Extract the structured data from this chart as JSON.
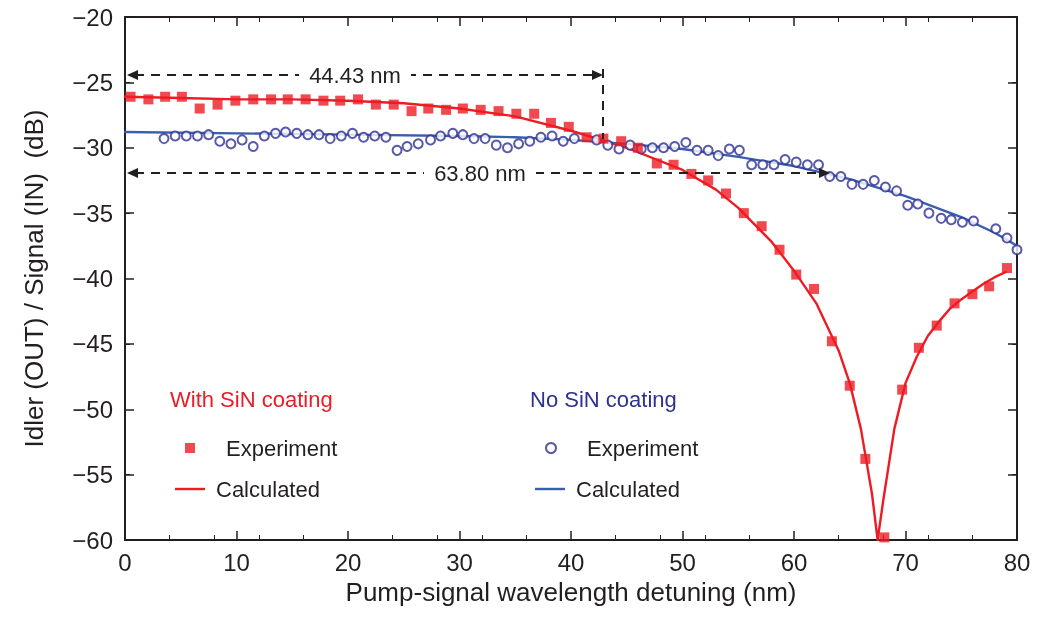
{
  "chart_data": {
    "type": "scatter",
    "xlabel": "Pump-signal wavelength detuning (nm)",
    "ylabel": "Idler (OUT) / Signal (IN)  (dB)",
    "xlim": [
      0,
      80
    ],
    "xticks": [
      0,
      10,
      20,
      30,
      40,
      50,
      60,
      70,
      80
    ],
    "ylim": [
      -60,
      -20
    ],
    "yticks": [
      -60,
      -55,
      -50,
      -45,
      -40,
      -35,
      -30,
      -25,
      -20
    ],
    "grid": false,
    "legend": "bottom left",
    "annotations": [
      "44.43 nm",
      "63.80 nm",
      "With SiN coating",
      "No SiN coating"
    ],
    "series": [
      {
        "name": "Experiment",
        "marker": "square",
        "color": "#ed1c24",
        "x": [
          0.5,
          2.1,
          3.6,
          5.1,
          6.7,
          8.3,
          9.9,
          11.5,
          13.1,
          14.6,
          16.2,
          17.8,
          19.3,
          20.9,
          22.5,
          24.1,
          25.7,
          27.2,
          28.8,
          30.3,
          31.9,
          33.5,
          35.1,
          36.7,
          38.2,
          39.8,
          41.4,
          42.9,
          44.5,
          46.0,
          47.7,
          49.2,
          50.8,
          52.3,
          53.9,
          55.5,
          57.1,
          58.7,
          60.2,
          61.8,
          63.4,
          65.0,
          66.4,
          68.1,
          69.7,
          71.2,
          72.8,
          74.4,
          76.0,
          77.5,
          79.1
        ],
        "values": [
          -26.1,
          -26.3,
          -26.1,
          -26.1,
          -27.0,
          -26.7,
          -26.4,
          -26.3,
          -26.3,
          -26.3,
          -26.3,
          -26.4,
          -26.4,
          -26.3,
          -26.7,
          -26.7,
          -27.2,
          -27.0,
          -27.1,
          -27.0,
          -27.1,
          -27.2,
          -27.4,
          -27.4,
          -28.1,
          -28.4,
          -29.2,
          -29.3,
          -29.5,
          -30.0,
          -31.2,
          -31.3,
          -32.0,
          -32.5,
          -33.5,
          -35.0,
          -36.0,
          -37.8,
          -39.7,
          -40.8,
          -44.8,
          -48.2,
          -53.8,
          -59.8,
          -48.5,
          -45.3,
          -43.6,
          -41.9,
          -41.2,
          -40.6,
          -39.2
        ]
      },
      {
        "name": "Calculated",
        "type": "line",
        "marker": "none",
        "color": "#ed1c24",
        "x": [
          0,
          5,
          10,
          15,
          20,
          25,
          30,
          35,
          40,
          45,
          50,
          53,
          55,
          58,
          60,
          62,
          64,
          65,
          66,
          67,
          67.5,
          68,
          69,
          70,
          71,
          72,
          73,
          74,
          75,
          76,
          77,
          78,
          79
        ],
        "values": [
          -26.1,
          -26.2,
          -26.3,
          -26.3,
          -26.4,
          -26.6,
          -27.0,
          -27.6,
          -28.7,
          -30.0,
          -31.7,
          -33.2,
          -34.6,
          -37.2,
          -39.4,
          -41.9,
          -45.5,
          -48.0,
          -51.5,
          -56.5,
          -60,
          -57,
          -51.5,
          -48.0,
          -46.0,
          -44.4,
          -43.3,
          -42.3,
          -41.6,
          -41.0,
          -40.4,
          -39.9,
          -39.5
        ]
      },
      {
        "name": "Experiment",
        "marker": "circle",
        "color": "#2e3192",
        "x": [
          3.5,
          4.5,
          5.5,
          6.5,
          7.5,
          8.5,
          9.5,
          10.5,
          11.5,
          12.5,
          13.5,
          14.4,
          15.4,
          16.4,
          17.4,
          18.4,
          19.4,
          20.4,
          21.4,
          22.4,
          23.4,
          24.4,
          25.3,
          26.3,
          27.4,
          28.3,
          29.4,
          30.3,
          31.3,
          32.3,
          33.3,
          34.3,
          35.3,
          36.3,
          37.3,
          38.3,
          39.3,
          40.3,
          42.3,
          43.3,
          44.3,
          45.3,
          46.3,
          47.3,
          48.3,
          49.3,
          50.3,
          51.3,
          52.3,
          53.2,
          54.2,
          55.1,
          56.2,
          57.2,
          58.2,
          59.2,
          60.2,
          61.2,
          62.2,
          63.2,
          64.2,
          65.2,
          66.2,
          67.2,
          68.2,
          69.2,
          70.2,
          71.1,
          72.1,
          73.2,
          74.1,
          75.1,
          76.1,
          78.1,
          79.1,
          80
        ],
        "values": [
          -29.3,
          -29.1,
          -29.1,
          -29.1,
          -29.0,
          -29.5,
          -29.7,
          -29.4,
          -29.9,
          -29.1,
          -28.9,
          -28.8,
          -28.9,
          -29.0,
          -29.0,
          -29.3,
          -29.1,
          -28.9,
          -29.2,
          -29.1,
          -29.2,
          -30.2,
          -29.9,
          -29.7,
          -29.4,
          -29.1,
          -28.9,
          -29.0,
          -29.3,
          -29.3,
          -29.8,
          -30.0,
          -29.7,
          -29.5,
          -29.2,
          -29.1,
          -29.5,
          -29.3,
          -29.4,
          -29.8,
          -30.1,
          -29.8,
          -30.1,
          -30.0,
          -30.0,
          -29.9,
          -29.6,
          -30.2,
          -30.2,
          -30.6,
          -30.1,
          -30.2,
          -31.3,
          -31.3,
          -31.3,
          -30.9,
          -31.1,
          -31.3,
          -31.3,
          -32.2,
          -32.2,
          -32.8,
          -32.8,
          -32.5,
          -33.0,
          -33.3,
          -34.4,
          -34.3,
          -35.0,
          -35.4,
          -35.5,
          -35.7,
          -35.6,
          -36.2,
          -36.9,
          -37.8
        ]
      },
      {
        "name": "Calculated",
        "type": "line",
        "marker": "none",
        "color": "#3a5dae",
        "x": [
          0,
          10,
          20,
          30,
          35,
          40,
          45,
          50,
          55,
          60,
          65,
          70,
          75,
          78,
          80
        ],
        "values": [
          -28.8,
          -28.9,
          -29.0,
          -29.1,
          -29.2,
          -29.4,
          -29.7,
          -30.1,
          -30.7,
          -31.4,
          -32.4,
          -33.7,
          -35.3,
          -36.5,
          -37.5
        ]
      }
    ]
  }
}
